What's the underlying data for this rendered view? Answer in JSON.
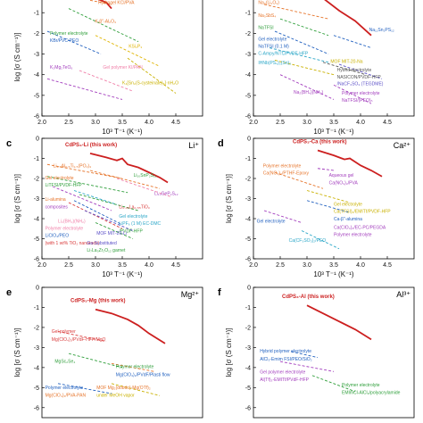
{
  "chart_data": [
    {
      "id": "a",
      "type": "line",
      "panel_label": "",
      "ion": "",
      "xlabel": "10³ T⁻¹ (K⁻¹)",
      "ylabel": "log [σ (S cm⁻¹)]",
      "xlim": [
        2.0,
        5.0
      ],
      "ylim": [
        -6,
        -0.3
      ],
      "xticks": [
        "2.0",
        "2.5",
        "3.0",
        "3.5",
        "4.0",
        "4.5"
      ],
      "yticks": [
        "-1",
        "-2",
        "-3",
        "-4",
        "-5",
        "-6"
      ],
      "this_work": {
        "label": "",
        "x": [
          3.0,
          3.2,
          3.3
        ],
        "y": [
          -0.3,
          -0.5,
          -0.8
        ]
      },
      "series": [
        {
          "label": "Hydrogel KCl/PVA",
          "color": "#e6742a",
          "x": [
            2.9,
            3.3
          ],
          "y": [
            -0.4,
            -0.6
          ]
        },
        {
          "label": "K-β″-Al₂O₃",
          "color": "#2e9e3a",
          "x": [
            2.5,
            3.8
          ],
          "y": [
            -0.8,
            -2.4
          ]
        },
        {
          "label": "Polymer electrolyte KBr/PVC-PEO",
          "color": "#1f5fbf",
          "x": [
            2.1,
            3.1
          ],
          "y": [
            -1.9,
            -3.0
          ]
        },
        {
          "label": "KSi₂P₃",
          "color": "#e0b400",
          "x": [
            3.0,
            4.2
          ],
          "y": [
            -2.1,
            -3.6
          ]
        },
        {
          "label": "K₂Mg₂TeO₆",
          "color": "#a23dbd",
          "x": [
            2.1,
            3.5
          ],
          "y": [
            -4.2,
            -5.2
          ]
        },
        {
          "label": "Gel polymer KI/PAN",
          "color": "#f07fa8",
          "x": [
            2.7,
            3.7
          ],
          "y": [
            -3.8,
            -4.8
          ]
        },
        {
          "label": "K₄[Sn₂(S-cysteinate)₆]·nH₂O",
          "color": "#c9b100",
          "x": [
            3.6,
            4.5
          ],
          "y": [
            -3.2,
            -4.9
          ]
        }
      ],
      "annotations": [
        "Hydrogel KCl/PVA",
        "K-β″-Al₂O₃",
        "Polymer electrolyte",
        "KBr/PVC-PEO",
        "KSi₂P₃",
        "K₂Mg₂TeO₆",
        "Gel polymer KI/PAN",
        "K₄[Sn₂(S-cysteinate)₆]·nH₂O"
      ]
    },
    {
      "id": "b",
      "type": "line",
      "panel_label": "",
      "ion": "",
      "xlabel": "10³ T⁻¹ (K⁻¹)",
      "ylabel": "",
      "xlim": [
        2.0,
        5.0
      ],
      "ylim": [
        -6,
        -0.3
      ],
      "xticks": [
        "2.0",
        "2.5",
        "3.0",
        "3.5",
        "4.0",
        "4.5"
      ],
      "yticks": [
        "-1",
        "-2",
        "-3",
        "-4",
        "-5",
        "-6"
      ],
      "this_work": {
        "label": "",
        "x": [
          3.3,
          3.6,
          3.9,
          4.2
        ],
        "y": [
          -0.3,
          -0.9,
          -1.4,
          -2.1
        ]
      },
      "series": [
        {
          "label": "Na₃(Li₂O₃)",
          "color": "#e6742a",
          "x": [
            2.2,
            3.4
          ],
          "y": [
            -0.6,
            -1.3
          ]
        },
        {
          "label": "Na₃SbS₄",
          "color": "#2e9e3a",
          "x": [
            2.5,
            3.4
          ],
          "y": [
            -1.3,
            -2.1
          ]
        },
        {
          "label": "NaTFSI",
          "color": "#1f5fbf",
          "x": [
            2.4,
            3.4
          ],
          "y": [
            -1.9,
            -3.0
          ]
        },
        {
          "label": "Na₁₁Sn₂PS₁₂",
          "color": "#1f5fbf",
          "x": [
            3.5,
            4.2
          ],
          "y": [
            -2.1,
            -2.7
          ]
        },
        {
          "label": "Gel electrolyte NaTFSI (0.1 M) C-Ampy/NTf₂/PVDF-HFP",
          "color": "#2aa6c7",
          "x": [
            2.3,
            3.4
          ],
          "y": [
            -2.7,
            -3.4
          ]
        },
        {
          "label": "IHNb(PS₄)₂(Sn)₂",
          "color": "#c9b100",
          "x": [
            2.4,
            3.5
          ],
          "y": [
            -3.3,
            -4.0
          ]
        },
        {
          "label": "MOF MIT-20-Na",
          "color": "#555555",
          "x": [
            3.3,
            4.1
          ],
          "y": [
            -3.4,
            -4.0
          ]
        },
        {
          "label": "Hybrid electrolyte NASICON/PVDF-HFP /NaCF₃SO₃ (TEGDME)",
          "color": "#5b4fc7",
          "x": [
            3.6,
            4.4
          ],
          "y": [
            -3.5,
            -4.2
          ]
        },
        {
          "label": "Na₂(BH₄)(NH₂)",
          "color": "#a23dbd",
          "x": [
            2.5,
            3.5
          ],
          "y": [
            -4.0,
            -5.2
          ]
        },
        {
          "label": "Polymer electrolyte NaTFSI/(PEO)ₙ",
          "color": "#a23dbd",
          "x": [
            3.5,
            4.2
          ],
          "y": [
            -4.5,
            -5.4
          ]
        }
      ],
      "annotations": [
        "Na₃(Li₂O₃)",
        "Na₃SbS₄",
        "NaTFSI",
        "Na₁₁Sn₂PS₁₂",
        "Gel electrolyte",
        "NaTFSI (0.1 M)",
        "C-Ampy/NTf₂/PVDF-HFP",
        "IHNb(PS₄)₂(Sn)₂",
        "MOF MIT-20-Na",
        "Hybrid electrolyte",
        "NASICON/PVDF-HFP",
        "/NaCF₃SO₃ (TEGDME)",
        "Na₂(BH₄)(NH₂)",
        "Polymer electrolyte",
        "NaTFSI/(PEO)ₙ"
      ]
    },
    {
      "id": "c",
      "type": "line",
      "panel_label": "c",
      "ion": "Li⁺",
      "xlabel": "10³ T⁻¹ (K⁻¹)",
      "ylabel": "log [σ (S cm⁻¹)]",
      "xlim": [
        2.0,
        5.0
      ],
      "ylim": [
        -6,
        0
      ],
      "xticks": [
        "2.0",
        "2.5",
        "3.0",
        "3.5",
        "4.0",
        "4.5"
      ],
      "yticks": [
        "0",
        "-1",
        "-2",
        "-3",
        "-4",
        "-5",
        "-6"
      ],
      "this_work": {
        "label": "CdPS₃-Li (this work)",
        "x": [
          2.9,
          3.2,
          3.4,
          3.5,
          3.6,
          3.8,
          4.0,
          4.2,
          4.35
        ],
        "y": [
          -0.75,
          -0.95,
          -1.1,
          -1.0,
          -1.3,
          -1.45,
          -1.7,
          -1.95,
          -2.2
        ]
      },
      "series": [
        {
          "label": "Li₁.₅Al₀.₅Ti₁.₅(PO₄)₃",
          "color": "#e6742a",
          "x": [
            2.1,
            3.5
          ],
          "y": [
            -1.3,
            -2.0
          ]
        },
        {
          "label": "Gel electrolyte LiTFSI/PVDF-HFP",
          "color": "#2e9e3a",
          "x": [
            2.1,
            3.6
          ],
          "y": [
            -1.9,
            -2.7
          ]
        },
        {
          "label": "Li₁₀SnP₂S₁₂",
          "color": "#e6742a",
          "x": [
            2.9,
            4.2
          ],
          "y": [
            -1.6,
            -2.5
          ]
        },
        {
          "label": "Li-alumina composites",
          "color": "#a23dbd",
          "x": [
            2.2,
            3.3
          ],
          "y": [
            -2.4,
            -3.6
          ]
        },
        {
          "label": "Li₁₀GeP₂S₁₂",
          "color": "#f07fa8",
          "x": [
            3.4,
            4.4
          ],
          "y": [
            -2.0,
            -2.9
          ]
        },
        {
          "label": "Li₂(BH₄)(NH₂)",
          "color": "#1f5fbf",
          "x": [
            2.6,
            3.5
          ],
          "y": [
            -3.1,
            -4.3
          ]
        },
        {
          "label": "Polymer electrolyte LiClO₄/PEO (with 1 wt% TiO₂ nanorods)",
          "color": "#d93a3a",
          "x": [
            2.5,
            3.5
          ],
          "y": [
            -3.2,
            -4.5
          ]
        },
        {
          "label": "Li₀.₃₅La₀.₅₅TiO₃",
          "color": "#2aa6c7",
          "x": [
            2.6,
            3.4
          ],
          "y": [
            -2.6,
            -3.3
          ]
        },
        {
          "label": "Gel electrolyte LiPF₆ (1 M) EC-DMC /PVDF-HFP",
          "color": "#2e9e3a",
          "x": [
            2.7,
            3.8
          ],
          "y": [
            -2.8,
            -3.6
          ]
        },
        {
          "label": "MOF MIT-20-Li",
          "color": "#5b4fc7",
          "x": [
            2.8,
            3.7
          ],
          "y": [
            -3.6,
            -4.6
          ]
        },
        {
          "label": "Ga-Substituted Li₇La₃Zr₂O₁₂ garnet",
          "color": "#2e9e3a",
          "x": [
            3.0,
            3.7
          ],
          "y": [
            -4.2,
            -5.0
          ]
        }
      ],
      "annotations": [
        "Li₁.₅Al₀.₅Ti₁.₅(PO₄)₃",
        "Gel electrolyte",
        "LiTFSI/PVDF-HFP",
        "Li₁₀SnP₂S₁₂",
        "Li-alumina",
        "composites",
        "Li₁₀GeP₂S₁₂",
        "Li₂(BH₄)(NH₂)",
        "Polymer electrolyte",
        "LiClO₄/PEO",
        "(with 1 wt% TiO₂ nanorods)",
        "Li₀.₃₅La₀.₅₅TiO₃",
        "Gel electrolyte",
        "LiPF₆ (1 M) EC-DMC",
        "/PVDF-HFP",
        "MOF MIT-20-Li",
        "Ga-Substituted",
        "Li₇La₃Zr₂O₁₂ garnet"
      ]
    },
    {
      "id": "d",
      "type": "line",
      "panel_label": "d",
      "ion": "Ca²⁺",
      "xlabel": "10³ T⁻¹ (K⁻¹)",
      "ylabel": "log [σ (S cm⁻¹)]",
      "xlim": [
        2.0,
        5.0
      ],
      "ylim": [
        -6,
        0
      ],
      "xticks": [
        "2.0",
        "2.5",
        "3.0",
        "3.5",
        "4.0",
        "4.5"
      ],
      "yticks": [
        "0",
        "-1",
        "-2",
        "-3",
        "-4",
        "-5",
        "-6"
      ],
      "this_work": {
        "label": "CdPS₃-Ca (this work)",
        "x": [
          3.2,
          3.5,
          3.7,
          3.8,
          4.0,
          4.2,
          4.4
        ],
        "y": [
          -0.6,
          -0.85,
          -1.05,
          -1.0,
          -1.35,
          -1.6,
          -1.9
        ]
      },
      "series": [
        {
          "label": "Polymer electrolyte Ca(NO₃)₂/PTHF-Epoxy",
          "color": "#e6742a",
          "x": [
            2.4,
            3.3
          ],
          "y": [
            -1.7,
            -2.5
          ]
        },
        {
          "label": "Aqueous gel Ca(NO₃)₂/PVA",
          "color": "#a23dbd",
          "x": [
            3.2,
            3.5
          ],
          "y": [
            -1.5,
            -1.6
          ]
        },
        {
          "label": "Gel electrolyte Ca(TFSI)₂/EMITf/PVDF-HFP",
          "color": "#c9b100",
          "x": [
            3.0,
            3.8
          ],
          "y": [
            -2.6,
            -3.2
          ]
        },
        {
          "label": "Gel electrolyte Ca(ClO₄)₂/EC-PC/PEGDA",
          "color": "#1f5fbf",
          "x": [
            3.0,
            3.8
          ],
          "y": [
            -3.1,
            -3.7
          ]
        },
        {
          "label": "Ca-β″-alumina",
          "color": "#a23dbd",
          "x": [
            2.2,
            2.9
          ],
          "y": [
            -3.6,
            -4.2
          ]
        },
        {
          "label": "Polymer electrolyte Ca(CF₃SO₃)₂/PEO",
          "color": "#2aa6c7",
          "x": [
            2.9,
            3.6
          ],
          "y": [
            -4.6,
            -5.5
          ]
        }
      ],
      "annotations": [
        "Polymer electrolyte",
        "Ca(NO₃)₂/PTHF-Epoxy",
        "Aqueous gel",
        "Ca(NO₃)₂/PVA",
        "Gel electrolyte",
        "Ca(TFSI)₂/EMITf/PVDF-HFP",
        "Ca-β″-alumina",
        "Gel electrolyte",
        "Ca(ClO₄)₂/EC-PC/PEGDA",
        "Polymer electrolyte",
        "Ca(CF₃SO₃)₂/PEO"
      ]
    },
    {
      "id": "e",
      "type": "line",
      "panel_label": "e",
      "ion": "Mg²⁺",
      "xlabel": "",
      "ylabel": "log [σ (S cm⁻¹)]",
      "xlim": [
        2.0,
        5.0
      ],
      "ylim": [
        -6.5,
        0
      ],
      "xticks": [],
      "yticks": [
        "0",
        "-1",
        "-2",
        "-3",
        "-4",
        "-5",
        "-6"
      ],
      "this_work": {
        "label": "CdPS₃-Mg (this work)",
        "x": [
          3.0,
          3.3,
          3.6,
          3.8,
          4.0,
          4.3
        ],
        "y": [
          -1.1,
          -1.3,
          -1.6,
          -1.9,
          -2.3,
          -2.8
        ]
      },
      "series": [
        {
          "label": "Gel polymer Mg(ClO₄)₂/PVdF-HFP/MgO",
          "color": "#d93a3a",
          "x": [
            2.3,
            3.2
          ],
          "y": [
            -2.2,
            -2.7
          ]
        },
        {
          "label": "MgSc₂Se₄",
          "color": "#2e9e3a",
          "x": [
            2.5,
            3.5
          ],
          "y": [
            -3.3,
            -4.0
          ]
        },
        {
          "label": "Polymer electrolyte Mg(ClO₄)₂/PVA-PAN",
          "color": "#1f5fbf",
          "x": [
            2.3,
            3.3
          ],
          "y": [
            -4.8,
            -5.3
          ]
        },
        {
          "label": "Polymer electrolyte Mg(ClO₄)₂/PVdF/Plasti flow",
          "color": "#e6742a",
          "x": [
            3.3,
            4.1
          ],
          "y": [
            -3.8,
            -4.2
          ]
        },
        {
          "label": "MOF Mg₂(dobdc)·Mg(OTf)₂ under MeOH vapor",
          "color": "#c9b100",
          "x": [
            3.3,
            4.2
          ],
          "y": [
            -4.8,
            -5.4
          ]
        }
      ],
      "annotations": [
        "Gel polymer",
        "Mg(ClO₄)₂/PVdF-HFP/MgO",
        "MgSc₂Se₄",
        "Polymer electrolyte",
        "Mg(ClO₄)₂/PVdF/Plasti flow",
        "Polymer electrolyte",
        "Mg(ClO₄)₂/PVA-PAN",
        "MOF Mg₂(dobdc)·Mg(OTf)₂",
        "under MeOH vapor"
      ]
    },
    {
      "id": "f",
      "type": "line",
      "panel_label": "f",
      "ion": "Al³⁺",
      "xlabel": "",
      "ylabel": "log [σ (S cm⁻¹)]",
      "xlim": [
        2.0,
        5.0
      ],
      "ylim": [
        -6.5,
        0
      ],
      "xticks": [],
      "yticks": [
        "0",
        "-1",
        "-2",
        "-3",
        "-4",
        "-5",
        "-6"
      ],
      "this_work": {
        "label": "CdPS₃-Al (this work)",
        "x": [
          3.0,
          3.3,
          3.6,
          3.9,
          4.2
        ],
        "y": [
          -0.9,
          -1.3,
          -1.7,
          -2.1,
          -2.6
        ]
      },
      "series": [
        {
          "label": "Hybrid polymer electrolyte AlCl₃-Emim FSI/PEO/SiO₂",
          "color": "#1f5fbf",
          "x": [
            2.7,
            3.2
          ],
          "y": [
            -3.2,
            -3.5
          ]
        },
        {
          "label": "Gel polymer electrolyte Al(Tf)₃-EMITf/PVdF-HFP",
          "color": "#a23dbd",
          "x": [
            2.5,
            3.5
          ],
          "y": [
            -3.7,
            -4.2
          ]
        },
        {
          "label": "Polymer electrolyte EMImCl-AlCl₃/polyacrylamide",
          "color": "#2e9e3a",
          "x": [
            3.1,
            3.9
          ],
          "y": [
            -4.4,
            -5.2
          ]
        }
      ],
      "annotations": [
        "Hybrid polymer electrolyte",
        "AlCl₃-Emim FSI/PEO/SiO₂",
        "Gel polymer electrolyte",
        "Al(Tf)₃-EMITf/PVdF-HFP",
        "Polymer electrolyte",
        "EMImCl-AlCl₃/polyacrylamide"
      ]
    }
  ]
}
